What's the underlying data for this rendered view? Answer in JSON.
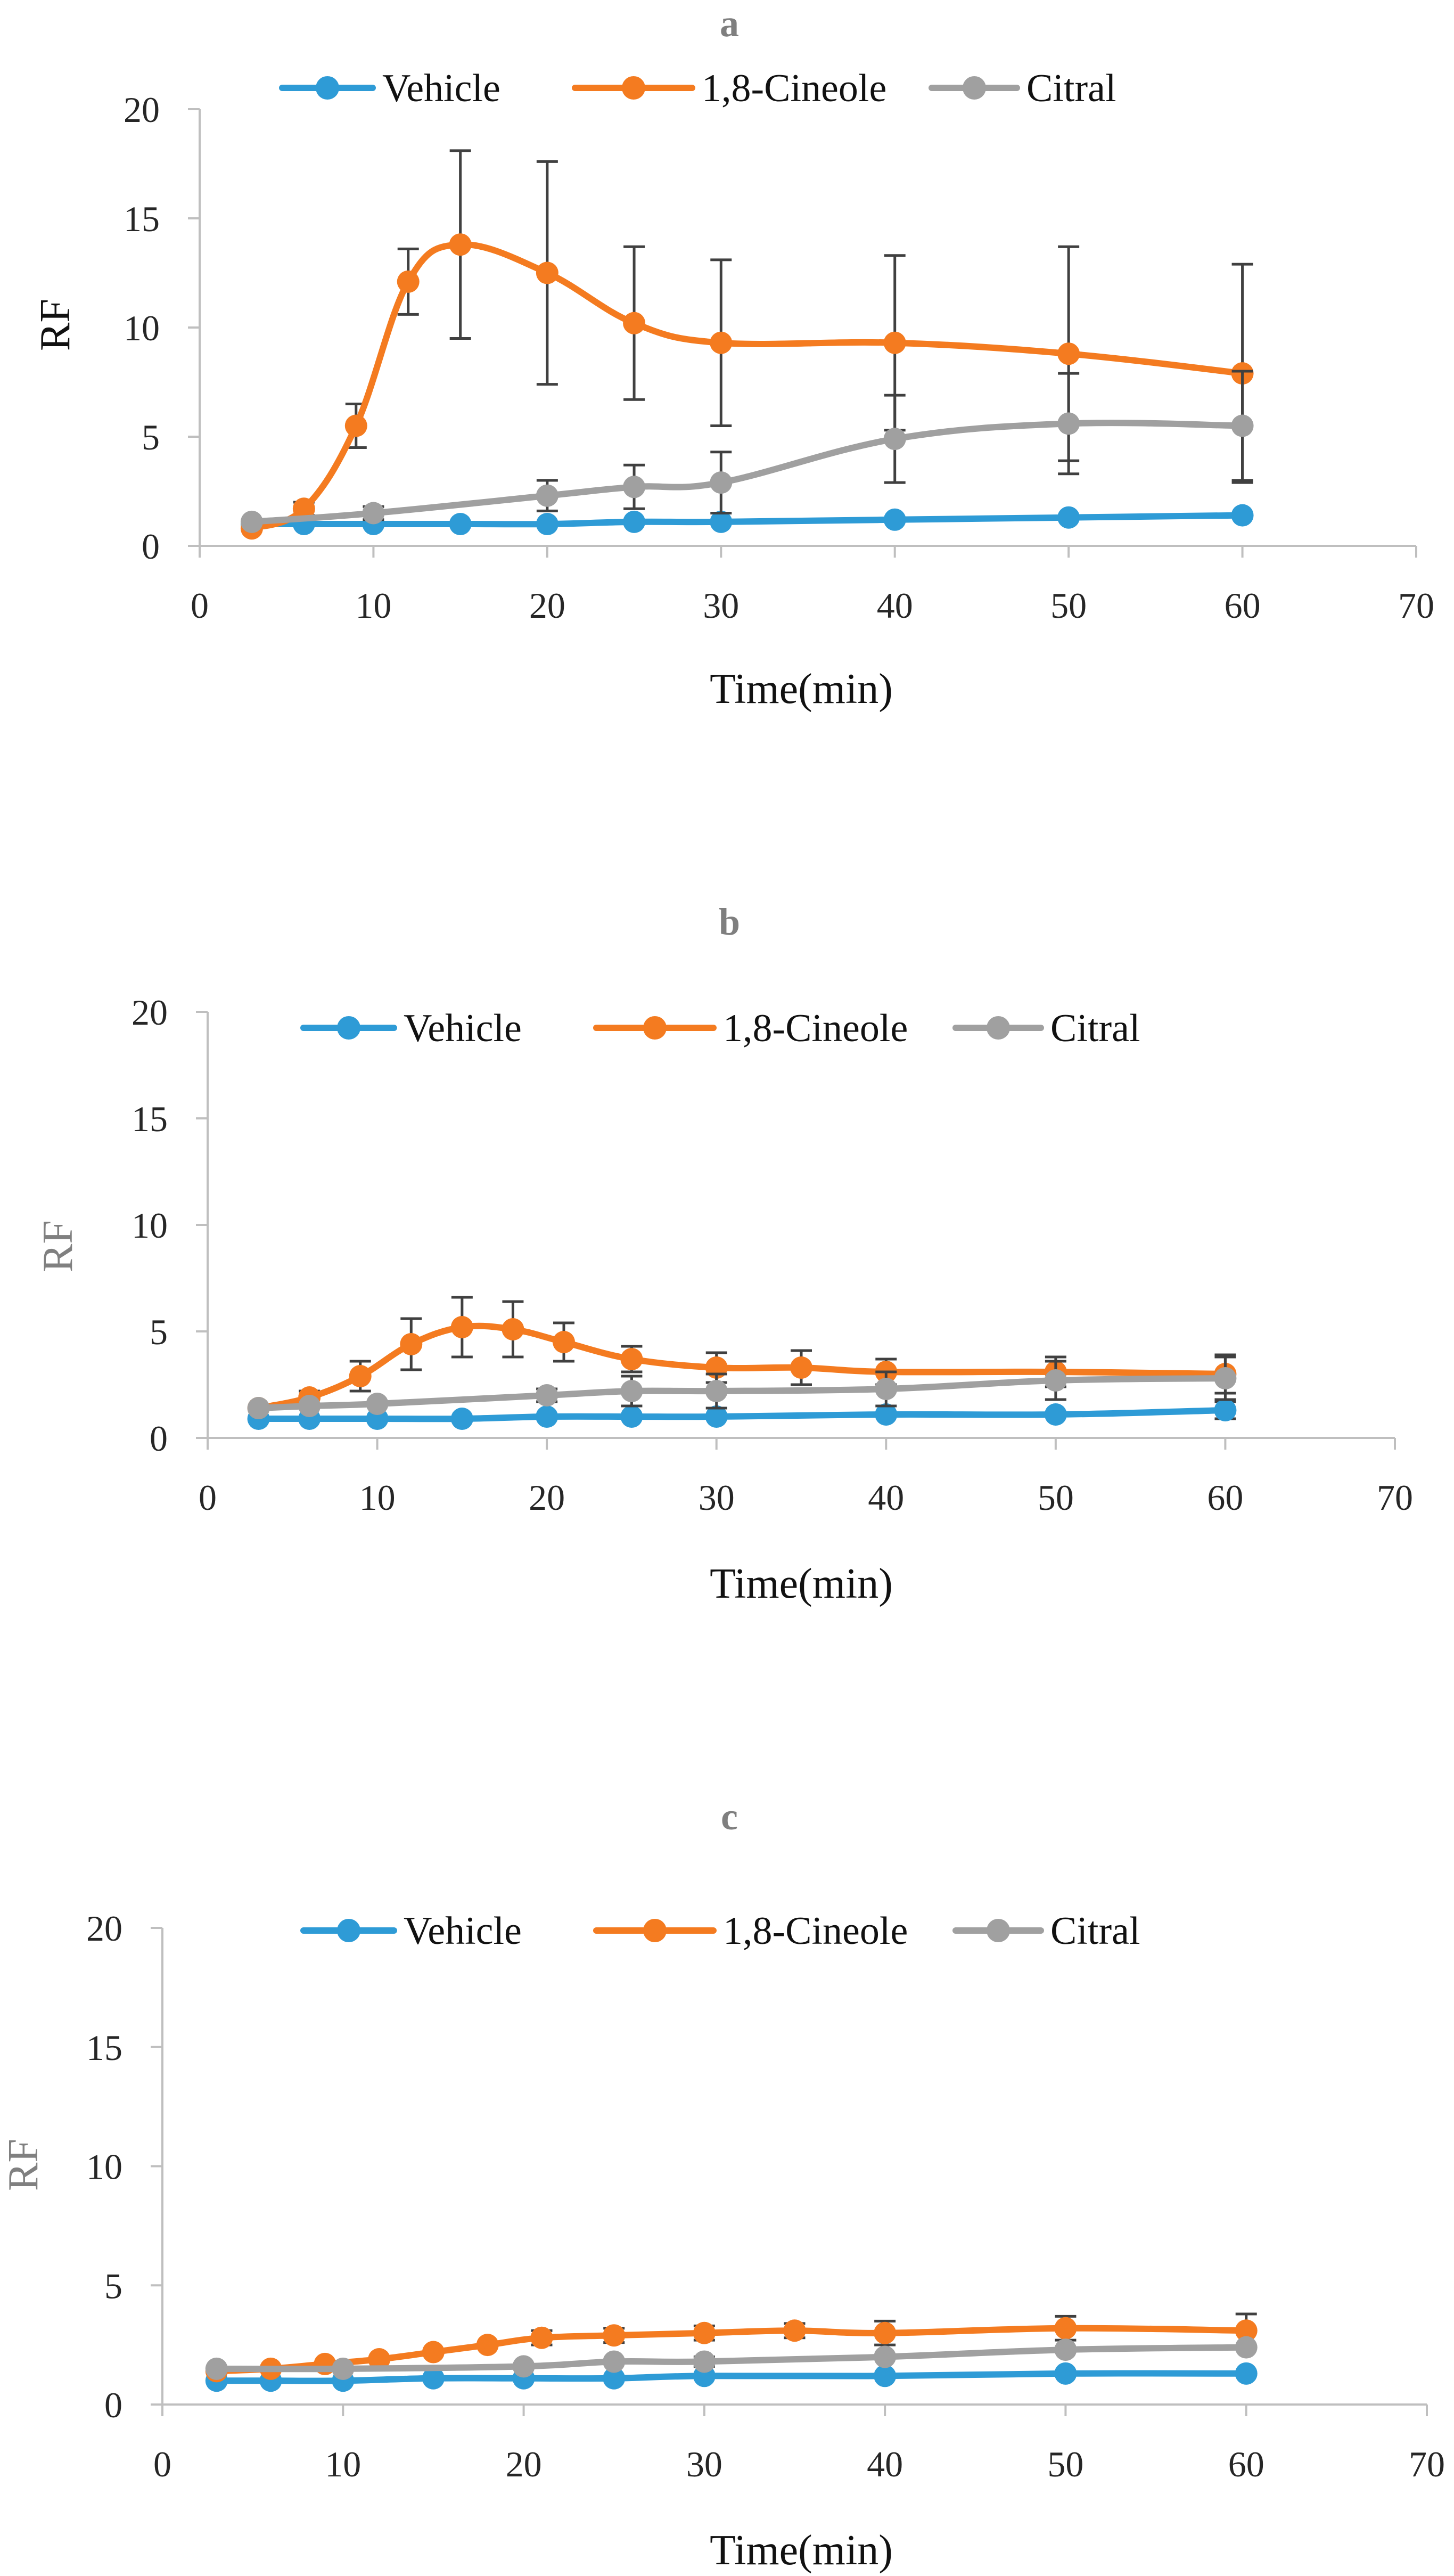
{
  "colors": {
    "vehicle": "#2e9bd6",
    "cineole": "#f47b20",
    "citral": "#a0a0a0",
    "axis": "#bfbfbf",
    "error_bar": "#404040"
  },
  "chart_data": [
    {
      "type": "line",
      "title": "a",
      "xlabel": "Time(min)",
      "ylabel": "RF",
      "ylabel_color": "#111111",
      "xlim": [
        0,
        70
      ],
      "ylim": [
        0,
        20
      ],
      "xticks": [
        "0",
        "10",
        "20",
        "30",
        "40",
        "50",
        "60",
        "70"
      ],
      "yticks": [
        "0",
        "5",
        "10",
        "15",
        "20"
      ],
      "legend": [
        "Vehicle",
        "1,8-Cineole",
        "Citral"
      ],
      "series": [
        {
          "name": "Vehicle",
          "color_key": "vehicle",
          "x": [
            3,
            6,
            10,
            15,
            20,
            25,
            30,
            40,
            50,
            60
          ],
          "y": [
            1.0,
            1.0,
            1.0,
            1.0,
            1.0,
            1.1,
            1.1,
            1.2,
            1.3,
            1.4
          ],
          "err": [
            0,
            0,
            0,
            0,
            0,
            0,
            0,
            0,
            0,
            0
          ]
        },
        {
          "name": "1,8-Cineole",
          "color_key": "cineole",
          "x": [
            3,
            6,
            9,
            12,
            15,
            20,
            25,
            30,
            40,
            50,
            60
          ],
          "y": [
            0.8,
            1.7,
            5.5,
            12.1,
            13.8,
            12.5,
            10.2,
            9.3,
            9.3,
            8.8,
            7.9
          ],
          "err": [
            0,
            0.3,
            1.0,
            1.5,
            4.3,
            5.1,
            3.5,
            3.8,
            4.0,
            4.9,
            5.0
          ]
        },
        {
          "name": "Citral",
          "color_key": "citral",
          "x": [
            3,
            10,
            20,
            25,
            30,
            40,
            50,
            60
          ],
          "y": [
            1.1,
            1.5,
            2.3,
            2.7,
            2.9,
            4.9,
            5.6,
            5.5
          ],
          "err": [
            0,
            0.3,
            0.7,
            1.0,
            1.4,
            2.0,
            2.3,
            2.5
          ]
        }
      ]
    },
    {
      "type": "line",
      "title": "b",
      "xlabel": "Time(min)",
      "ylabel": "RF",
      "ylabel_color": "#808080",
      "xlim": [
        0,
        70
      ],
      "ylim": [
        0,
        20
      ],
      "xticks": [
        "0",
        "10",
        "20",
        "30",
        "40",
        "50",
        "60",
        "70"
      ],
      "yticks": [
        "0",
        "5",
        "10",
        "15",
        "20"
      ],
      "legend": [
        "Vehicle",
        "1,8-Cineole",
        "Citral"
      ],
      "series": [
        {
          "name": "Vehicle",
          "color_key": "vehicle",
          "x": [
            3,
            6,
            10,
            15,
            20,
            25,
            30,
            40,
            50,
            60
          ],
          "y": [
            0.9,
            0.9,
            0.9,
            0.9,
            1.0,
            1.0,
            1.0,
            1.1,
            1.1,
            1.3
          ],
          "err": [
            0,
            0,
            0,
            0,
            0,
            0,
            0,
            0,
            0,
            0.4
          ]
        },
        {
          "name": "1,8-Cineole",
          "color_key": "cineole",
          "x": [
            3,
            6,
            9,
            12,
            15,
            18,
            21,
            25,
            30,
            35,
            40,
            50,
            60
          ],
          "y": [
            1.4,
            1.9,
            2.9,
            4.4,
            5.2,
            5.1,
            4.5,
            3.7,
            3.3,
            3.3,
            3.1,
            3.1,
            3.0
          ],
          "err": [
            0,
            0.3,
            0.7,
            1.2,
            1.4,
            1.3,
            0.9,
            0.6,
            0.7,
            0.8,
            0.6,
            0.7,
            0.9
          ]
        },
        {
          "name": "Citral",
          "color_key": "citral",
          "x": [
            3,
            6,
            10,
            20,
            25,
            30,
            40,
            50,
            60
          ],
          "y": [
            1.4,
            1.5,
            1.6,
            2.0,
            2.2,
            2.2,
            2.3,
            2.7,
            2.8
          ],
          "err": [
            0,
            0,
            0,
            0.3,
            0.7,
            0.8,
            0.8,
            0.9,
            1.0
          ]
        }
      ]
    },
    {
      "type": "line",
      "title": "c",
      "xlabel": "Time(min)",
      "ylabel": "RF",
      "ylabel_color": "#808080",
      "xlim": [
        0,
        70
      ],
      "ylim": [
        0,
        20
      ],
      "xticks": [
        "0",
        "10",
        "20",
        "30",
        "40",
        "50",
        "60",
        "70"
      ],
      "yticks": [
        "0",
        "5",
        "10",
        "15",
        "20"
      ],
      "legend": [
        "Vehicle",
        "1,8-Cineole",
        "Citral"
      ],
      "series": [
        {
          "name": "Vehicle",
          "color_key": "vehicle",
          "x": [
            3,
            6,
            10,
            15,
            20,
            25,
            30,
            40,
            50,
            60
          ],
          "y": [
            1.0,
            1.0,
            1.0,
            1.1,
            1.1,
            1.1,
            1.2,
            1.2,
            1.3,
            1.3
          ],
          "err": [
            0,
            0,
            0,
            0,
            0,
            0,
            0,
            0,
            0,
            0
          ]
        },
        {
          "name": "1,8-Cineole",
          "color_key": "cineole",
          "x": [
            3,
            6,
            9,
            12,
            15,
            18,
            21,
            25,
            30,
            35,
            40,
            50,
            60
          ],
          "y": [
            1.4,
            1.5,
            1.7,
            1.9,
            2.2,
            2.5,
            2.8,
            2.9,
            3.0,
            3.1,
            3.0,
            3.2,
            3.1
          ],
          "err": [
            0,
            0,
            0,
            0,
            0,
            0,
            0.3,
            0.3,
            0.3,
            0.3,
            0.5,
            0.5,
            0.7
          ]
        },
        {
          "name": "Citral",
          "color_key": "citral",
          "x": [
            3,
            10,
            20,
            25,
            30,
            40,
            50,
            60
          ],
          "y": [
            1.5,
            1.5,
            1.6,
            1.8,
            1.8,
            2.0,
            2.3,
            2.4
          ],
          "err": [
            0,
            0,
            0,
            0,
            0.2,
            0,
            0,
            0
          ]
        }
      ]
    }
  ]
}
